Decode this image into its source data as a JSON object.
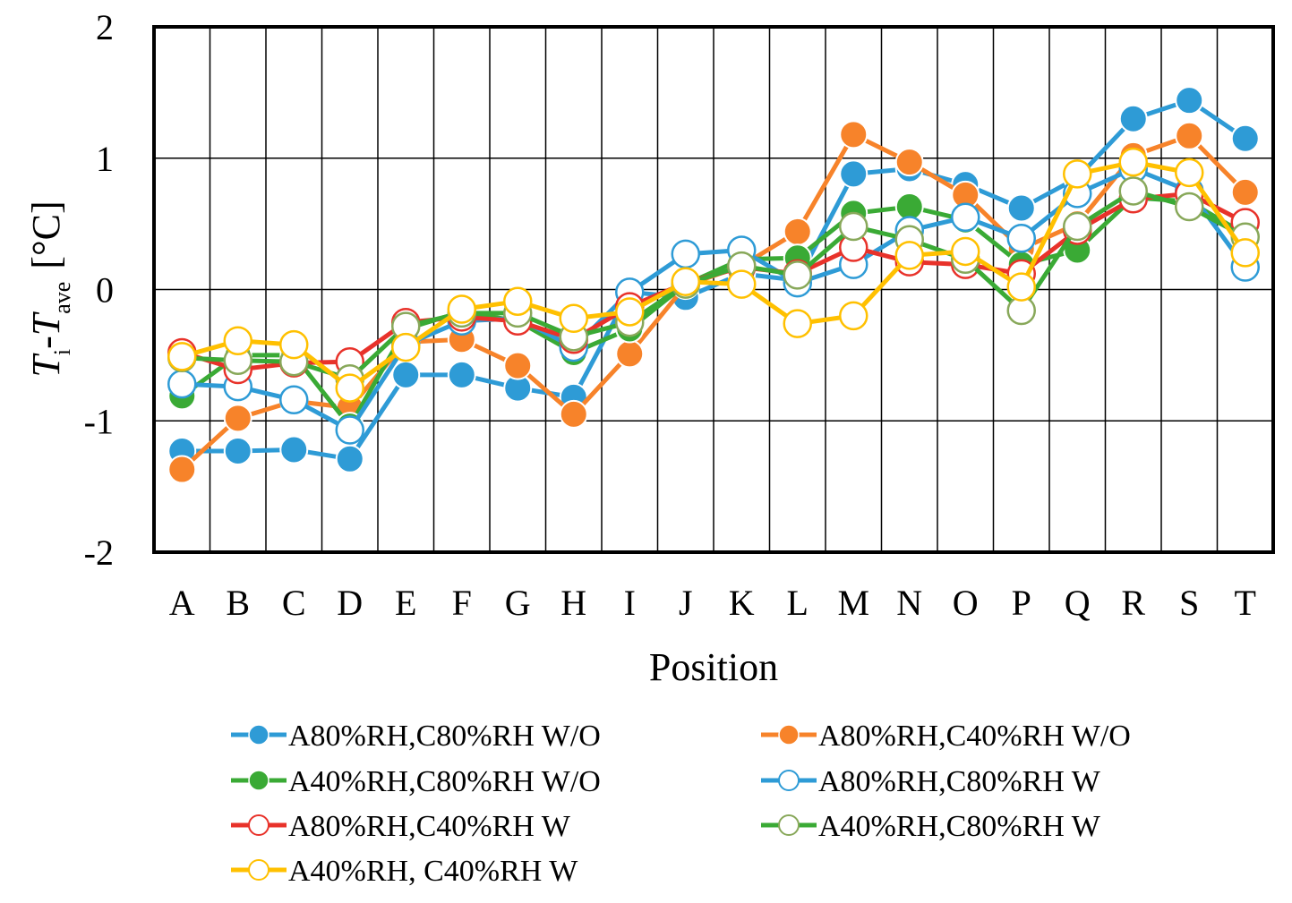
{
  "chart_data": {
    "type": "line",
    "xlabel": "Position",
    "ylabel": {
      "main": "T",
      "sub_i": "i",
      "dash": "-",
      "main2": "T",
      "sub_ave": "ave",
      "unit": "[°C]"
    },
    "categories": [
      "A",
      "B",
      "C",
      "D",
      "E",
      "F",
      "G",
      "H",
      "I",
      "J",
      "K",
      "L",
      "M",
      "N",
      "O",
      "P",
      "Q",
      "R",
      "S",
      "T"
    ],
    "ylim": [
      -2,
      2
    ],
    "yticks": [
      -2,
      -1,
      0,
      1,
      2
    ],
    "grid": true,
    "legend_position": "bottom",
    "series": [
      {
        "name": "A80%RH,C80%RH W/O",
        "color": "#2e9bd6",
        "filled": true,
        "values": [
          -1.23,
          -1.23,
          -1.22,
          -1.29,
          -0.65,
          -0.65,
          -0.75,
          -0.82,
          -0.02,
          -0.06,
          0.12,
          0.07,
          0.88,
          0.92,
          0.8,
          0.62,
          0.85,
          1.3,
          1.44,
          1.15
        ]
      },
      {
        "name": "A80%RH,C40%RH W/O",
        "color": "#f7832a",
        "filled": true,
        "values": [
          -1.37,
          -0.98,
          -0.85,
          -0.9,
          -0.4,
          -0.38,
          -0.58,
          -0.95,
          -0.49,
          0.03,
          0.18,
          0.44,
          1.18,
          0.97,
          0.72,
          0.31,
          0.5,
          1.02,
          1.17,
          0.74
        ]
      },
      {
        "name": "A40%RH,C80%RH W/O",
        "color": "#3aaa35",
        "filled": true,
        "values": [
          -0.81,
          -0.5,
          -0.5,
          -1.04,
          -0.3,
          -0.17,
          -0.24,
          -0.48,
          -0.3,
          0.04,
          0.23,
          0.24,
          0.58,
          0.63,
          0.53,
          0.19,
          0.3,
          0.7,
          0.67,
          0.42
        ]
      },
      {
        "name": "A80%RH,C80%RH W",
        "color": "#2e9bd6",
        "filled": false,
        "values": [
          -0.72,
          -0.74,
          -0.84,
          -1.07,
          -0.42,
          -0.24,
          -0.22,
          -0.44,
          -0.02,
          0.27,
          0.3,
          0.05,
          0.19,
          0.45,
          0.55,
          0.39,
          0.73,
          0.92,
          0.75,
          0.17
        ]
      },
      {
        "name": "A80%RH,C40%RH W",
        "color": "#e8322a",
        "filled": false,
        "values": [
          -0.48,
          -0.61,
          -0.56,
          -0.55,
          -0.25,
          -0.21,
          -0.24,
          -0.38,
          -0.13,
          0.05,
          0.17,
          0.12,
          0.32,
          0.21,
          0.19,
          0.12,
          0.45,
          0.69,
          0.73,
          0.51
        ]
      },
      {
        "name": "A40%RH,C80%RH W",
        "color": "#3aaa35",
        "filled": false,
        "marker_edge": "#88a85a",
        "values": [
          -0.52,
          -0.54,
          -0.55,
          -0.68,
          -0.28,
          -0.18,
          -0.18,
          -0.36,
          -0.25,
          0.04,
          0.18,
          0.11,
          0.48,
          0.38,
          0.23,
          -0.16,
          0.48,
          0.75,
          0.63,
          0.4
        ]
      },
      {
        "name": "A40%RH, C40%RH W",
        "color": "#ffc000",
        "filled": false,
        "values": [
          -0.51,
          -0.39,
          -0.42,
          -0.75,
          -0.44,
          -0.15,
          -0.09,
          -0.22,
          -0.17,
          0.06,
          0.04,
          -0.26,
          -0.2,
          0.26,
          0.29,
          0.02,
          0.88,
          0.97,
          0.89,
          0.28
        ]
      }
    ]
  }
}
